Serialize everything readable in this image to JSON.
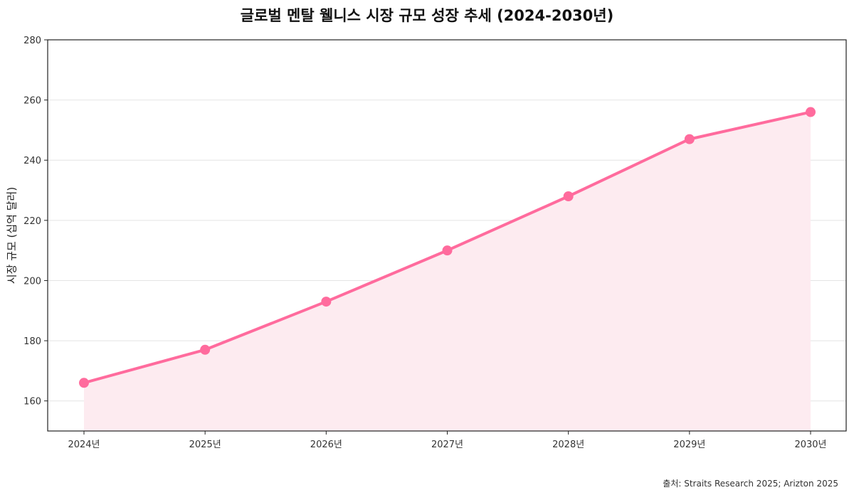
{
  "chart_data": {
    "type": "area",
    "title": "글로벌 멘탈 웰니스 시장 규모 성장 추세 (2024-2030년)",
    "xlabel": "",
    "ylabel": "시장 규모 (십억 달러)",
    "categories": [
      "2024년",
      "2025년",
      "2026년",
      "2027년",
      "2028년",
      "2029년",
      "2030년"
    ],
    "values": [
      166,
      177,
      193,
      210,
      228,
      247,
      256
    ],
    "ylim": [
      150,
      280
    ],
    "yticks": [
      160,
      180,
      200,
      220,
      240,
      260,
      280
    ],
    "grid": "horizontal",
    "line_color": "#ff6b9d",
    "fill_color": "#fdebf0",
    "source": "출처: Straits Research 2025; Arizton 2025"
  }
}
